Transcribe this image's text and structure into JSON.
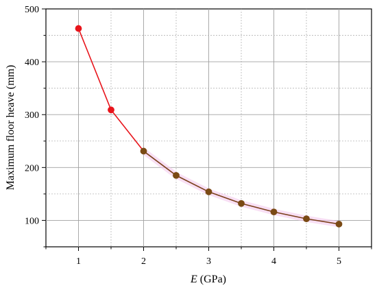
{
  "chart_data": {
    "type": "line",
    "title": "",
    "xlabel_symbol": "E",
    "xlabel_unit": " (GPa)",
    "ylabel": "Maximum floor heave (mm)",
    "xlim": [
      0.5,
      5.5
    ],
    "ylim": [
      50,
      500
    ],
    "xticks": [
      1,
      2,
      3,
      4,
      5
    ],
    "xminor": [
      1.5,
      2.5,
      3.5,
      4.5
    ],
    "yticks": [
      100,
      200,
      300,
      400,
      500
    ],
    "grid": true,
    "legend": "none",
    "x": [
      1,
      1.5,
      2,
      2.5,
      3,
      3.5,
      4,
      4.5,
      5
    ],
    "y": [
      463,
      309,
      231,
      185,
      154,
      132,
      116,
      103,
      93
    ],
    "colors": {
      "segment_early": "#e8141b",
      "segment_late": "#7a3e1a",
      "marker_early": "#e8141b",
      "marker_late": "#7a4a14",
      "highlight": "#f4c6ec"
    }
  }
}
